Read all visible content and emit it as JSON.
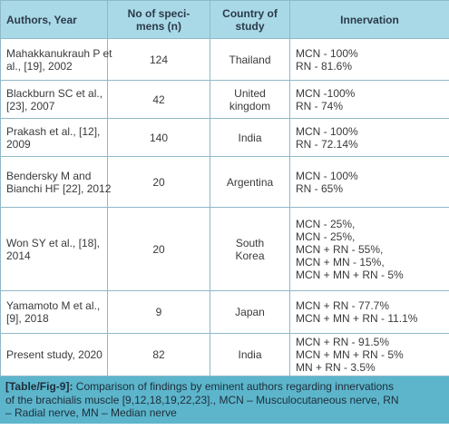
{
  "table": {
    "header": [
      [
        "Authors, Year"
      ],
      [
        "No of speci-",
        "mens (n)"
      ],
      [
        "Country of",
        "study"
      ],
      [
        "Innervation"
      ]
    ],
    "rows": [
      {
        "authors": [
          "Mahakkanukrauh P et",
          "al., [19], 2002"
        ],
        "n": 124,
        "country": [
          "Thailand"
        ],
        "innervation": [
          "MCN - 100%",
          "RN - 81.6%"
        ]
      },
      {
        "authors": [
          "Blackburn SC et al.,",
          "[23], 2007"
        ],
        "n": 42,
        "country": [
          "United",
          "kingdom"
        ],
        "innervation": [
          "MCN -100%",
          "RN - 74%"
        ]
      },
      {
        "authors": [
          "Prakash et al., [12],",
          "2009"
        ],
        "n": 140,
        "country": [
          "India"
        ],
        "innervation": [
          "MCN - 100%",
          "RN - 72.14%"
        ]
      },
      {
        "authors": [
          "Bendersky M and",
          "Bianchi HF [22], 2012"
        ],
        "n": 20,
        "country": [
          "Argentina"
        ],
        "innervation": [
          "MCN - 100%",
          "RN - 65%"
        ]
      },
      {
        "authors": [
          "Won SY et al., [18],",
          "2014"
        ],
        "n": 20,
        "country": [
          "South",
          "Korea"
        ],
        "innervation": [
          "MCN - 25%,",
          "MCN - 25%,",
          "MCN + RN - 55%,",
          "MCN + MN - 15%,",
          "MCN + MN + RN - 5%"
        ]
      },
      {
        "authors": [
          "Yamamoto M et al.,",
          "[9], 2018"
        ],
        "n": 9,
        "country": [
          "Japan"
        ],
        "innervation": [
          "MCN + RN - 77.7%",
          "MCN + MN + RN - 11.1%"
        ]
      },
      {
        "authors": [
          "Present study, 2020"
        ],
        "n": 82,
        "country": [
          "India"
        ],
        "innervation": [
          "MCN + RN - 91.5%",
          "MCN + MN + RN - 5%",
          "MN + RN - 3.5%"
        ]
      }
    ]
  },
  "caption": {
    "label": "[Table/Fig-9]:",
    "lines": [
      "Comparison of findings by eminent authors regarding innervations",
      "of the brachialis muscle [9,12,18,19,22,23]., MCN – Musculocutaneous nerve, RN",
      "– Radial nerve, MN – Median nerve"
    ]
  }
}
